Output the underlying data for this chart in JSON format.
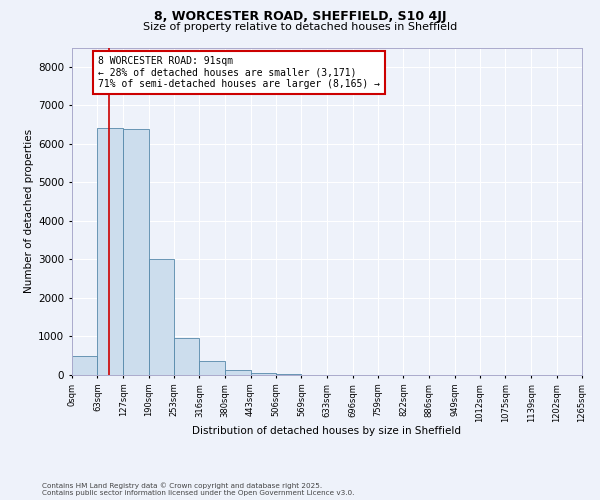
{
  "title_line1": "8, WORCESTER ROAD, SHEFFIELD, S10 4JJ",
  "title_line2": "Size of property relative to detached houses in Sheffield",
  "xlabel": "Distribution of detached houses by size in Sheffield",
  "ylabel": "Number of detached properties",
  "bar_color": "#ccdded",
  "bar_edge_color": "#5588aa",
  "background_color": "#eef2fa",
  "grid_color": "#ffffff",
  "annotation_box_color": "#cc0000",
  "property_line_color": "#cc0000",
  "property_size": 91,
  "annotation_text_lines": [
    "8 WORCESTER ROAD: 91sqm",
    "← 28% of detached houses are smaller (3,171)",
    "71% of semi-detached houses are larger (8,165) →"
  ],
  "footnote1": "Contains HM Land Registry data © Crown copyright and database right 2025.",
  "footnote2": "Contains public sector information licensed under the Open Government Licence v3.0.",
  "bin_labels": [
    "0sqm",
    "63sqm",
    "127sqm",
    "190sqm",
    "253sqm",
    "316sqm",
    "380sqm",
    "443sqm",
    "506sqm",
    "569sqm",
    "633sqm",
    "696sqm",
    "759sqm",
    "822sqm",
    "886sqm",
    "949sqm",
    "1012sqm",
    "1075sqm",
    "1139sqm",
    "1202sqm",
    "1265sqm"
  ],
  "bin_edges": [
    0,
    63,
    127,
    190,
    253,
    316,
    380,
    443,
    506,
    569,
    633,
    696,
    759,
    822,
    886,
    949,
    1012,
    1075,
    1139,
    1202,
    1265
  ],
  "bar_heights": [
    500,
    6400,
    6380,
    3000,
    950,
    370,
    130,
    60,
    15,
    5,
    2,
    1,
    0,
    0,
    0,
    0,
    0,
    0,
    0,
    0
  ],
  "ylim": [
    0,
    8500
  ],
  "yticks": [
    0,
    1000,
    2000,
    3000,
    4000,
    5000,
    6000,
    7000,
    8000
  ]
}
